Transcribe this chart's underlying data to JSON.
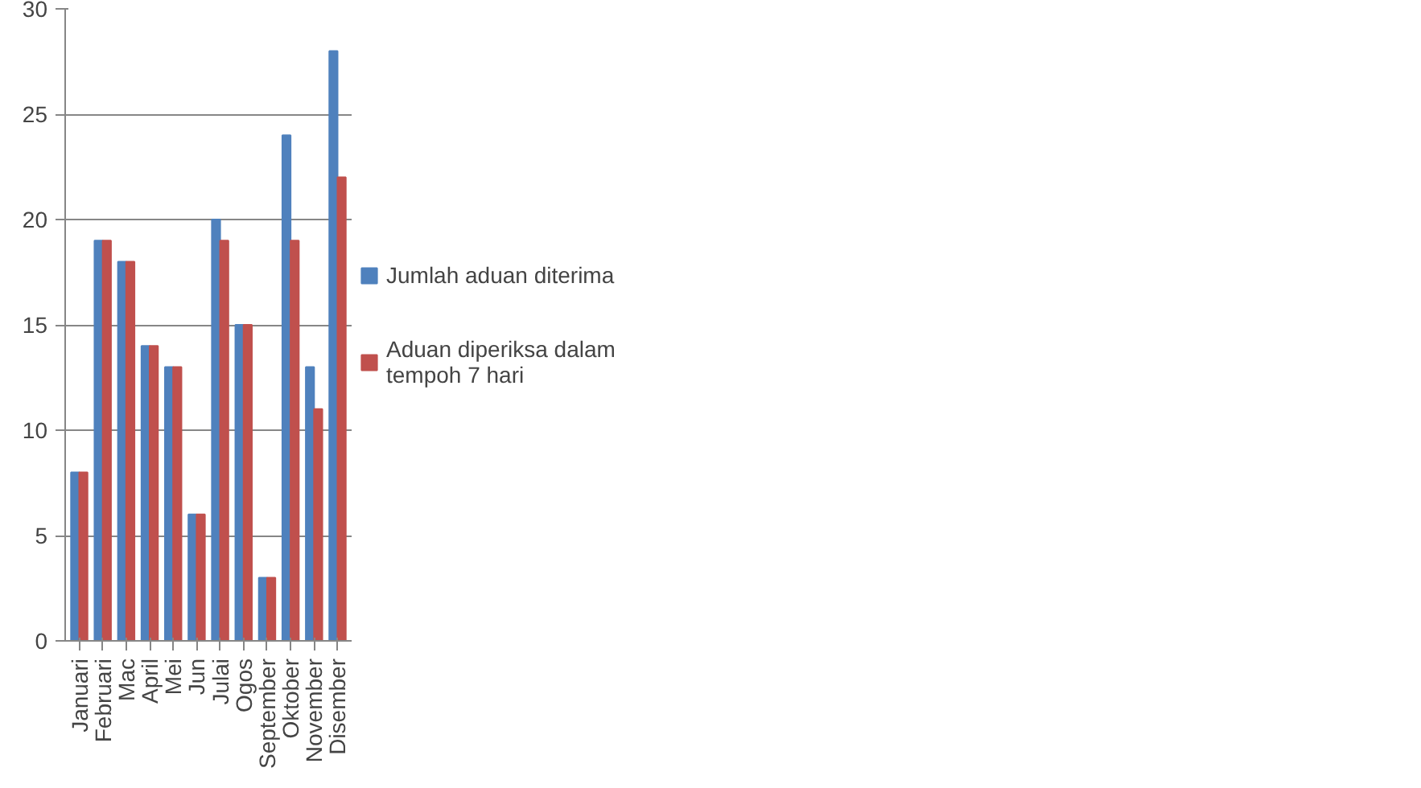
{
  "chart_data": {
    "type": "bar",
    "categories": [
      "Januari",
      "Februari",
      "Mac",
      "April",
      "Mei",
      "Jun",
      "Julai",
      "Ogos",
      "September",
      "Oktober",
      "November",
      "Disember"
    ],
    "series": [
      {
        "name": "Jumlah aduan diterima",
        "color": "#4f81bd",
        "values": [
          8,
          19,
          18,
          14,
          13,
          6,
          20,
          15,
          3,
          24,
          13,
          28
        ]
      },
      {
        "name": "Aduan diperiksa dalam\ntempoh 7 hari",
        "color": "#c0504d",
        "values": [
          8,
          19,
          18,
          14,
          13,
          6,
          19,
          15,
          3,
          19,
          11,
          22
        ]
      }
    ],
    "ylim": [
      0,
      30
    ],
    "yticks": [
      0,
      5,
      10,
      15,
      20,
      25,
      30
    ],
    "grid": "y",
    "legend": "right"
  }
}
